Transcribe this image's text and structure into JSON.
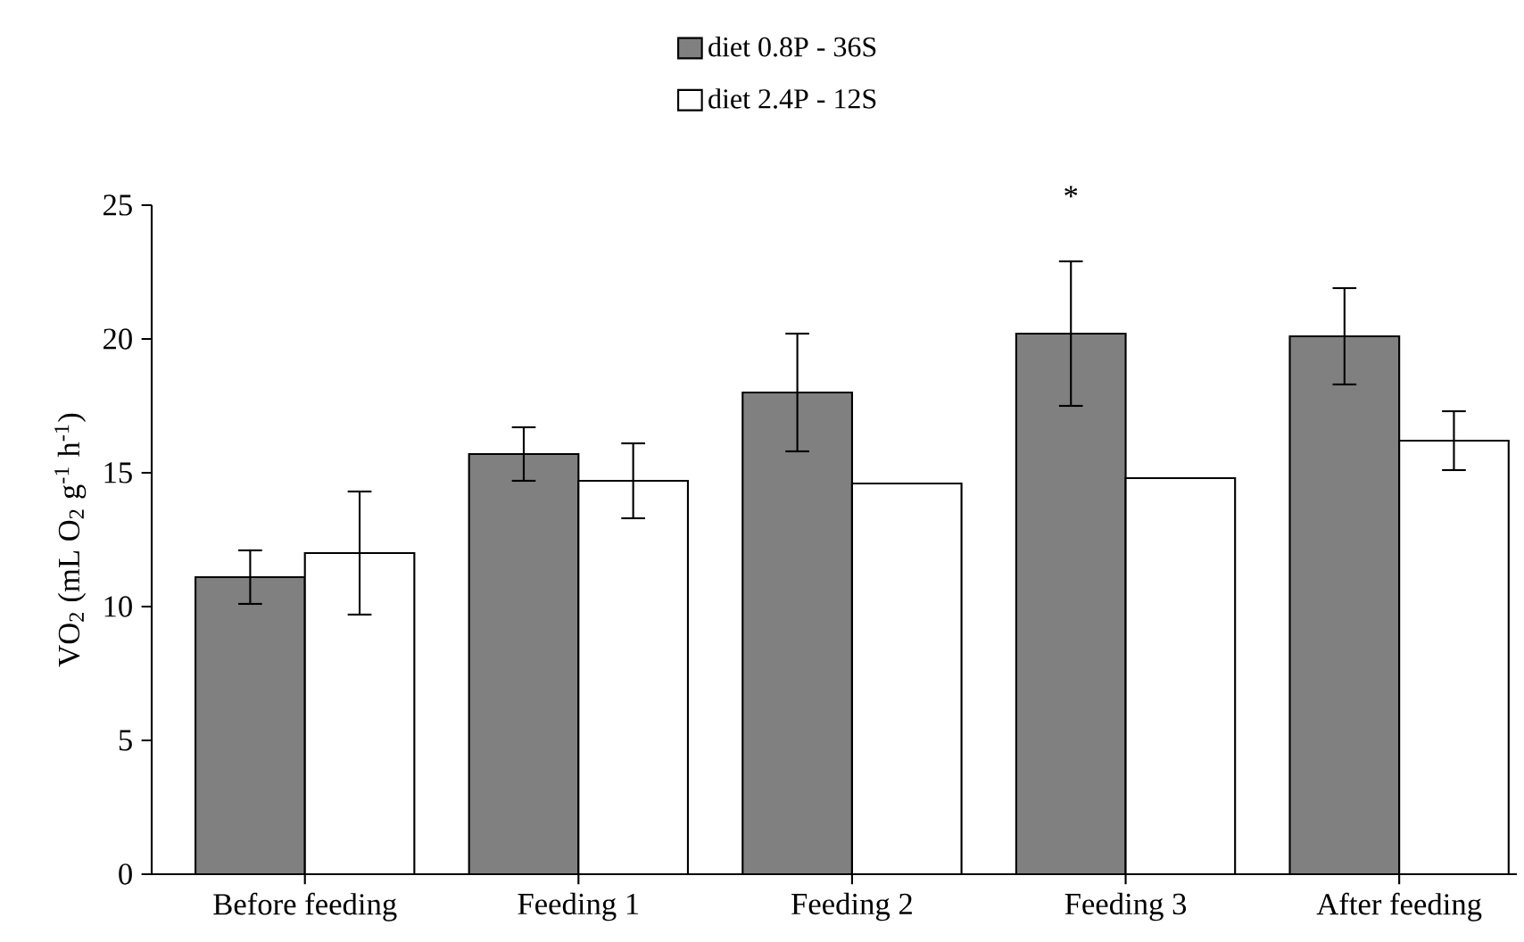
{
  "chart_data": {
    "type": "bar",
    "categories": [
      "Before feeding",
      "Feeding 1",
      "Feeding 2",
      "Feeding 3",
      "After feeding"
    ],
    "series": [
      {
        "name": "diet 0.8P - 36S",
        "color": "#808080",
        "values": [
          11.1,
          15.7,
          18.0,
          20.2,
          20.1
        ],
        "errors": [
          1.0,
          1.0,
          2.2,
          2.7,
          1.8
        ]
      },
      {
        "name": "diet 2.4P - 12S",
        "color": "#ffffff",
        "values": [
          12.0,
          14.7,
          14.6,
          14.8,
          16.2
        ],
        "errors": [
          2.3,
          1.4,
          null,
          null,
          1.1
        ]
      }
    ],
    "ylabel": "VO$_{2}$ (mL O$_{2}$ g$^{-1}$ h$^{-1}$)",
    "ylim": [
      0,
      25
    ],
    "yticks": [
      0,
      5,
      10,
      15,
      20,
      25
    ],
    "legend": "top",
    "annotations": [
      "*"
    ]
  }
}
